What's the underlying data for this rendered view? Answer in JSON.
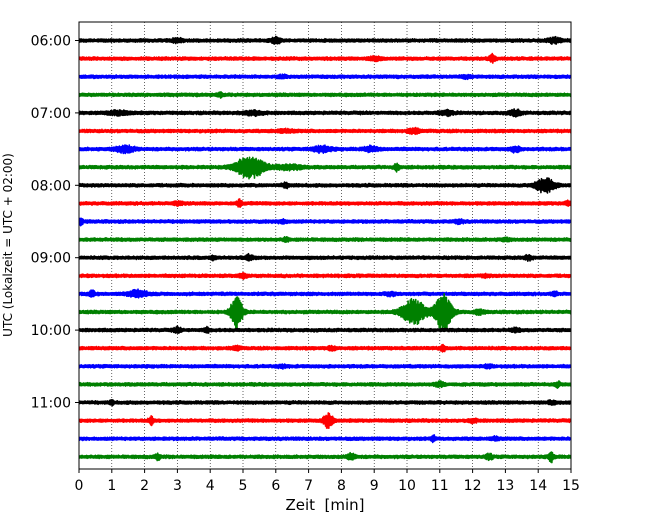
{
  "chart_data": {
    "type": "line",
    "title": "",
    "xlabel": "Zeit  [min]",
    "ylabel": "UTC (Lokalzeit = UTC + 02:00)",
    "xlim": [
      0,
      15
    ],
    "x_ticks": [
      "0",
      "1",
      "2",
      "3",
      "4",
      "5",
      "6",
      "7",
      "8",
      "9",
      "10",
      "11",
      "12",
      "13",
      "14",
      "15"
    ],
    "y_ticks": [
      "06:00",
      "07:00",
      "08:00",
      "09:00",
      "10:00",
      "11:00"
    ],
    "grid": "vertical dotted lines at each minute",
    "legend": "none",
    "trace_interval_minutes": 15,
    "start_time": "06:00",
    "trace_colors": [
      "#000000",
      "#ff0000",
      "#0000ff",
      "#008000"
    ],
    "series": [
      {
        "start": "06:00",
        "events": [
          {
            "t": 3.0,
            "a": 0.28,
            "w": 0.12
          },
          {
            "t": 6.0,
            "a": 0.45,
            "w": 0.1
          },
          {
            "t": 14.5,
            "a": 0.35,
            "w": 0.15
          }
        ]
      },
      {
        "start": "06:15",
        "events": [
          {
            "t": 12.6,
            "a": 0.55,
            "w": 0.06
          },
          {
            "t": 9.0,
            "a": 0.2,
            "w": 0.15
          }
        ]
      },
      {
        "start": "06:30",
        "events": [
          {
            "t": 6.2,
            "a": 0.18,
            "w": 0.1
          },
          {
            "t": 11.8,
            "a": 0.18,
            "w": 0.1
          }
        ]
      },
      {
        "start": "06:45",
        "events": [
          {
            "t": 4.3,
            "a": 0.3,
            "w": 0.06
          }
        ]
      },
      {
        "start": "07:00",
        "events": [
          {
            "t": 1.2,
            "a": 0.25,
            "w": 0.25
          },
          {
            "t": 5.3,
            "a": 0.28,
            "w": 0.2
          },
          {
            "t": 11.2,
            "a": 0.3,
            "w": 0.15
          },
          {
            "t": 13.3,
            "a": 0.4,
            "w": 0.12
          }
        ]
      },
      {
        "start": "07:15",
        "events": [
          {
            "t": 10.2,
            "a": 0.35,
            "w": 0.12
          },
          {
            "t": 6.3,
            "a": 0.15,
            "w": 0.2
          }
        ]
      },
      {
        "start": "07:30",
        "events": [
          {
            "t": 1.4,
            "a": 0.45,
            "w": 0.2
          },
          {
            "t": 7.4,
            "a": 0.4,
            "w": 0.2
          },
          {
            "t": 8.9,
            "a": 0.35,
            "w": 0.15
          },
          {
            "t": 13.3,
            "a": 0.35,
            "w": 0.1
          }
        ]
      },
      {
        "start": "07:45",
        "events": [
          {
            "t": 5.2,
            "a": 1.6,
            "w": 0.3
          },
          {
            "t": 6.4,
            "a": 0.3,
            "w": 0.3
          },
          {
            "t": 9.7,
            "a": 0.45,
            "w": 0.06
          }
        ]
      },
      {
        "start": "08:00",
        "events": [
          {
            "t": 14.2,
            "a": 1.0,
            "w": 0.2
          },
          {
            "t": 6.3,
            "a": 0.25,
            "w": 0.08
          }
        ]
      },
      {
        "start": "08:15",
        "events": [
          {
            "t": 4.9,
            "a": 0.5,
            "w": 0.05
          },
          {
            "t": 3.0,
            "a": 0.2,
            "w": 0.1
          },
          {
            "t": 14.9,
            "a": 0.25,
            "w": 0.06
          }
        ]
      },
      {
        "start": "08:30",
        "events": [
          {
            "t": 0.05,
            "a": 0.45,
            "w": 0.05
          },
          {
            "t": 6.2,
            "a": 0.2,
            "w": 0.1
          },
          {
            "t": 11.6,
            "a": 0.2,
            "w": 0.1
          }
        ]
      },
      {
        "start": "08:45",
        "events": [
          {
            "t": 6.3,
            "a": 0.25,
            "w": 0.06
          },
          {
            "t": 13.0,
            "a": 0.15,
            "w": 0.1
          }
        ]
      },
      {
        "start": "09:00",
        "events": [
          {
            "t": 4.1,
            "a": 0.25,
            "w": 0.06
          },
          {
            "t": 5.2,
            "a": 0.35,
            "w": 0.08
          },
          {
            "t": 13.7,
            "a": 0.3,
            "w": 0.08
          }
        ]
      },
      {
        "start": "09:15",
        "events": [
          {
            "t": 5.0,
            "a": 0.3,
            "w": 0.08
          },
          {
            "t": 12.4,
            "a": 0.15,
            "w": 0.08
          }
        ]
      },
      {
        "start": "09:30",
        "events": [
          {
            "t": 0.4,
            "a": 0.4,
            "w": 0.06
          },
          {
            "t": 1.8,
            "a": 0.45,
            "w": 0.2
          },
          {
            "t": 9.5,
            "a": 0.2,
            "w": 0.1
          },
          {
            "t": 14.5,
            "a": 0.35,
            "w": 0.05
          }
        ]
      },
      {
        "start": "09:45",
        "events": [
          {
            "t": 4.8,
            "a": 2.5,
            "w": 0.12
          },
          {
            "t": 10.2,
            "a": 1.8,
            "w": 0.25
          },
          {
            "t": 11.1,
            "a": 2.6,
            "w": 0.18
          },
          {
            "t": 12.2,
            "a": 0.3,
            "w": 0.1
          }
        ]
      },
      {
        "start": "10:00",
        "events": [
          {
            "t": 3.0,
            "a": 0.35,
            "w": 0.08
          },
          {
            "t": 3.9,
            "a": 0.3,
            "w": 0.06
          },
          {
            "t": 13.3,
            "a": 0.2,
            "w": 0.1
          }
        ]
      },
      {
        "start": "10:15",
        "events": [
          {
            "t": 4.8,
            "a": 0.25,
            "w": 0.08
          },
          {
            "t": 7.7,
            "a": 0.3,
            "w": 0.08
          },
          {
            "t": 11.1,
            "a": 0.4,
            "w": 0.06
          }
        ]
      },
      {
        "start": "10:30",
        "events": [
          {
            "t": 6.2,
            "a": 0.15,
            "w": 0.1
          },
          {
            "t": 12.5,
            "a": 0.15,
            "w": 0.1
          }
        ]
      },
      {
        "start": "10:45",
        "events": [
          {
            "t": 11.0,
            "a": 0.3,
            "w": 0.1
          },
          {
            "t": 14.6,
            "a": 0.35,
            "w": 0.05
          }
        ]
      },
      {
        "start": "11:00",
        "events": [
          {
            "t": 1.0,
            "a": 0.35,
            "w": 0.04
          },
          {
            "t": 14.4,
            "a": 0.2,
            "w": 0.08
          }
        ]
      },
      {
        "start": "11:15",
        "events": [
          {
            "t": 2.2,
            "a": 0.5,
            "w": 0.05
          },
          {
            "t": 7.6,
            "a": 1.0,
            "w": 0.1
          },
          {
            "t": 12.0,
            "a": 0.2,
            "w": 0.1
          }
        ]
      },
      {
        "start": "11:30",
        "events": [
          {
            "t": 10.8,
            "a": 0.4,
            "w": 0.05
          },
          {
            "t": 12.7,
            "a": 0.2,
            "w": 0.08
          }
        ]
      },
      {
        "start": "11:45",
        "events": [
          {
            "t": 2.4,
            "a": 0.35,
            "w": 0.06
          },
          {
            "t": 8.3,
            "a": 0.45,
            "w": 0.08
          },
          {
            "t": 12.5,
            "a": 0.35,
            "w": 0.08
          },
          {
            "t": 14.4,
            "a": 0.6,
            "w": 0.06
          }
        ]
      }
    ]
  }
}
